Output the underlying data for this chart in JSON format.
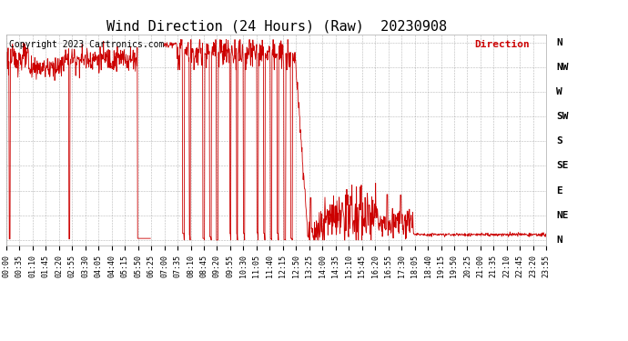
{
  "title": "Wind Direction (24 Hours) (Raw)  20230908",
  "copyright_text": "Copyright 2023 Cartronics.com",
  "legend_label": "Direction",
  "legend_color": "#cc0000",
  "line_color": "#cc0000",
  "background_color": "#ffffff",
  "grid_color": "#888888",
  "ytick_labels": [
    "N",
    "NW",
    "W",
    "SW",
    "S",
    "SE",
    "E",
    "NE",
    "N"
  ],
  "ytick_values": [
    360,
    315,
    270,
    225,
    180,
    135,
    90,
    45,
    0
  ],
  "ylim": [
    -10,
    375
  ],
  "x_labels": [
    "00:00",
    "00:35",
    "01:10",
    "01:45",
    "02:20",
    "02:55",
    "03:30",
    "04:05",
    "04:40",
    "05:15",
    "05:50",
    "06:25",
    "07:00",
    "07:35",
    "08:10",
    "08:45",
    "09:20",
    "09:55",
    "10:30",
    "11:05",
    "11:40",
    "12:15",
    "12:50",
    "13:25",
    "14:00",
    "14:35",
    "15:10",
    "15:45",
    "16:20",
    "16:55",
    "17:30",
    "18:05",
    "18:40",
    "19:15",
    "19:50",
    "20:25",
    "21:00",
    "21:35",
    "22:10",
    "22:45",
    "23:20",
    "23:55"
  ],
  "title_fontsize": 11,
  "axis_fontsize": 7,
  "copyright_fontsize": 7,
  "figsize": [
    6.9,
    3.75
  ],
  "dpi": 100
}
